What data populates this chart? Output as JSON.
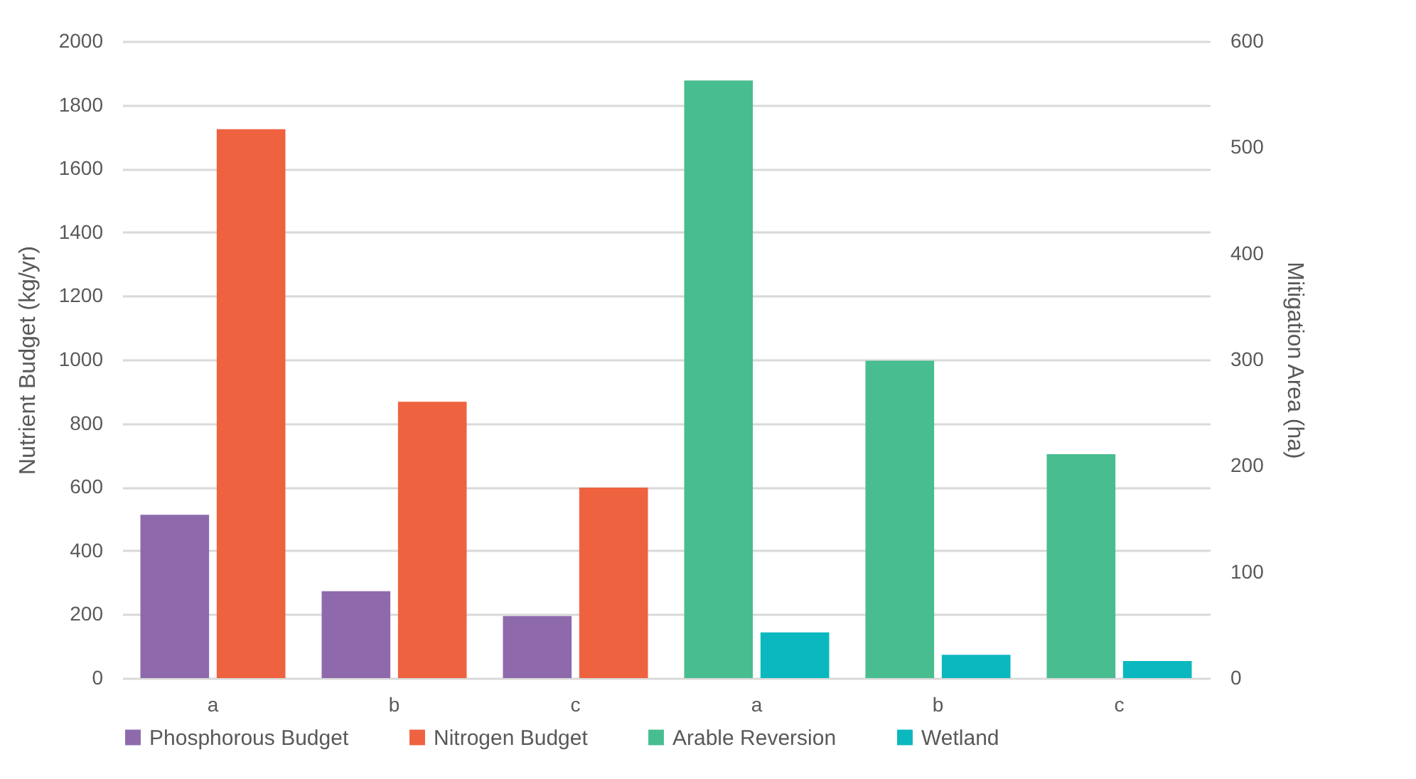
{
  "chart_data": {
    "type": "bar",
    "ylabel": "Nutrient Budget (kg/yr)",
    "y2label": "Mitigation Area (ha)",
    "categories": [
      "a",
      "b",
      "c",
      "a",
      "b",
      "c"
    ],
    "series": [
      {
        "name": "Phosphorous Budget",
        "color": "#8e6aad",
        "values": [
          513,
          273,
          195,
          null,
          null,
          null
        ]
      },
      {
        "name": "Nitrogen Budget",
        "color": "#ef6240",
        "values": [
          1724,
          868,
          598,
          null,
          null,
          null
        ]
      },
      {
        "name": "Arable Reversion",
        "color": "#48bd8f",
        "axis": "y2",
        "values": [
          null,
          null,
          null,
          563,
          299,
          211
        ]
      },
      {
        "name": "Wetland",
        "color": "#0bb8bf",
        "axis": "y2",
        "values": [
          null,
          null,
          null,
          43,
          22,
          16
        ]
      }
    ],
    "ylim": [
      0,
      2000
    ],
    "yticks": [
      0,
      200,
      400,
      600,
      800,
      1000,
      1200,
      1400,
      1600,
      1800,
      2000
    ],
    "y2lim": [
      0,
      600
    ],
    "y2ticks": [
      0,
      100,
      200,
      300,
      400,
      500,
      600
    ],
    "grid": "y",
    "legend": "bottom"
  }
}
